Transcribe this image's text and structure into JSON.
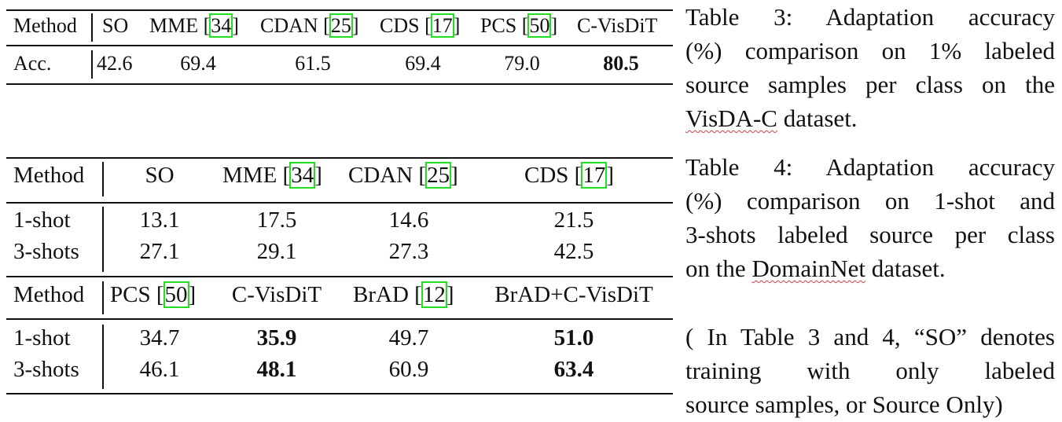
{
  "table3": {
    "header": {
      "method": "Method",
      "so": "SO",
      "mme": "MME",
      "mme_ref": "34",
      "cdan": "CDAN",
      "cdan_ref": "25",
      "cds": "CDS",
      "cds_ref": "17",
      "pcs": "PCS",
      "pcs_ref": "50",
      "cvisdit": "C-VisDiT"
    },
    "row": {
      "label": "Acc.",
      "so": "42.6",
      "mme": "69.4",
      "cdan": "61.5",
      "cds": "69.4",
      "pcs": "79.0",
      "cvisdit": "80.5"
    }
  },
  "caption3": {
    "lines": [
      "Table 3: Adaptation accuracy",
      "(%) comparison on 1% labeled",
      "source samples per class on the"
    ],
    "last_word": "VisDA-C",
    "last_rest": " dataset."
  },
  "table4": {
    "header1": {
      "method": "Method",
      "so": "SO",
      "mme": "MME",
      "mme_ref": "34",
      "cdan": "CDAN",
      "cdan_ref": "25",
      "cds": "CDS",
      "cds_ref": "17"
    },
    "rows1": [
      {
        "label": "1-shot",
        "so": "13.1",
        "mme": "17.5",
        "cdan": "14.6",
        "cds": "21.5"
      },
      {
        "label": "3-shots",
        "so": "27.1",
        "mme": "29.1",
        "cdan": "27.3",
        "cds": "42.5"
      }
    ],
    "header2": {
      "method": "Method",
      "pcs": "PCS",
      "pcs_ref": "50",
      "cvisdit": "C-VisDiT",
      "brad": "BrAD",
      "brad_ref": "12",
      "bradc": "BrAD+C-VisDiT"
    },
    "rows2": [
      {
        "label": "1-shot",
        "pcs": "34.7",
        "cvisdit": "35.9",
        "brad": "49.7",
        "bradc": "51.0"
      },
      {
        "label": "3-shots",
        "pcs": "46.1",
        "cvisdit": "48.1",
        "brad": "60.9",
        "bradc": "63.4"
      }
    ]
  },
  "caption4": {
    "lines": [
      "Table 4: Adaptation accuracy",
      "(%) comparison on 1-shot and",
      "3-shots labeled source per class"
    ],
    "last_pre": "on the ",
    "last_word": "DomainNet",
    "last_rest": " dataset."
  },
  "note": {
    "lines": [
      "( In Table 3 and 4, “SO” denotes",
      "training with only labeled",
      "source samples, or Source Only)"
    ]
  }
}
